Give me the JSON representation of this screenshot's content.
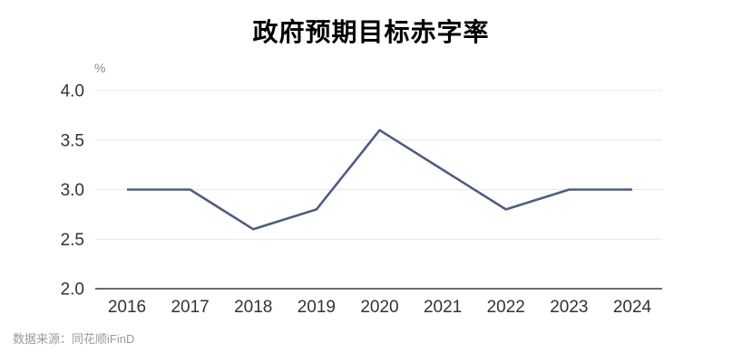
{
  "title": "政府预期目标赤字率",
  "source": "数据来源：同花顺iFinD",
  "chart_data": {
    "type": "line",
    "title": "政府预期目标赤字率",
    "unit_label": "%",
    "categories": [
      "2016",
      "2017",
      "2018",
      "2019",
      "2020",
      "2021",
      "2022",
      "2023",
      "2024"
    ],
    "series": [
      {
        "name": "政府预期目标赤字率",
        "values": [
          3.0,
          3.0,
          2.6,
          2.8,
          3.6,
          3.2,
          2.8,
          3.0,
          3.0
        ]
      }
    ],
    "ylim": [
      2.0,
      4.0
    ],
    "ytick_labels": [
      "4.0",
      "3.5",
      "3.0",
      "2.5",
      "2.0"
    ],
    "grid": true,
    "legend_position": "none",
    "colors": {
      "line": "#505d80",
      "grid": "#e8e8e8",
      "axis": "#3c3c3c",
      "tick_text": "#333333",
      "unit_text": "#8a8a8a"
    }
  }
}
